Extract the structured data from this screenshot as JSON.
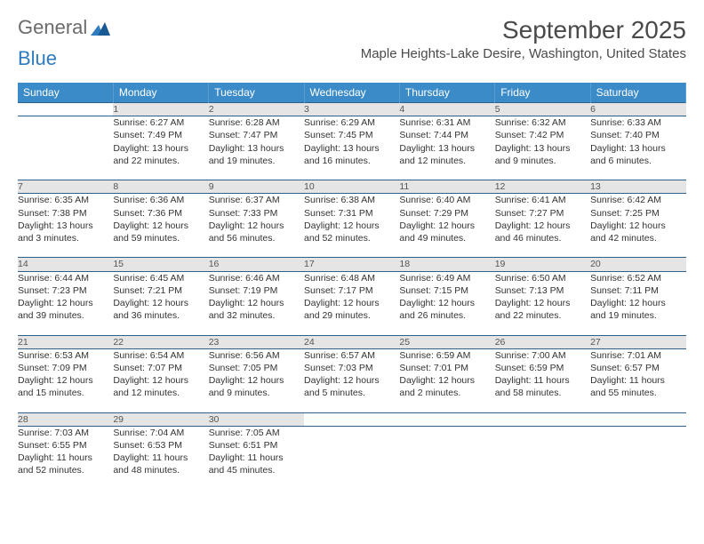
{
  "logo": {
    "text1": "General",
    "text2": "Blue"
  },
  "title": "September 2025",
  "location": "Maple Heights-Lake Desire, Washington, United States",
  "colors": {
    "header_bg": "#3b8bc8",
    "header_text": "#ffffff",
    "daynum_bg": "#e5e5e5",
    "daynum_text": "#555555",
    "body_text": "#333333",
    "rule": "#2f5f8a",
    "logo_gray": "#6b6b6b",
    "logo_blue": "#2f7bbf",
    "page_bg": "#ffffff"
  },
  "weekdays": [
    "Sunday",
    "Monday",
    "Tuesday",
    "Wednesday",
    "Thursday",
    "Friday",
    "Saturday"
  ],
  "weeks": [
    [
      null,
      {
        "n": "1",
        "sunrise": "Sunrise: 6:27 AM",
        "sunset": "Sunset: 7:49 PM",
        "day1": "Daylight: 13 hours",
        "day2": "and 22 minutes."
      },
      {
        "n": "2",
        "sunrise": "Sunrise: 6:28 AM",
        "sunset": "Sunset: 7:47 PM",
        "day1": "Daylight: 13 hours",
        "day2": "and 19 minutes."
      },
      {
        "n": "3",
        "sunrise": "Sunrise: 6:29 AM",
        "sunset": "Sunset: 7:45 PM",
        "day1": "Daylight: 13 hours",
        "day2": "and 16 minutes."
      },
      {
        "n": "4",
        "sunrise": "Sunrise: 6:31 AM",
        "sunset": "Sunset: 7:44 PM",
        "day1": "Daylight: 13 hours",
        "day2": "and 12 minutes."
      },
      {
        "n": "5",
        "sunrise": "Sunrise: 6:32 AM",
        "sunset": "Sunset: 7:42 PM",
        "day1": "Daylight: 13 hours",
        "day2": "and 9 minutes."
      },
      {
        "n": "6",
        "sunrise": "Sunrise: 6:33 AM",
        "sunset": "Sunset: 7:40 PM",
        "day1": "Daylight: 13 hours",
        "day2": "and 6 minutes."
      }
    ],
    [
      {
        "n": "7",
        "sunrise": "Sunrise: 6:35 AM",
        "sunset": "Sunset: 7:38 PM",
        "day1": "Daylight: 13 hours",
        "day2": "and 3 minutes."
      },
      {
        "n": "8",
        "sunrise": "Sunrise: 6:36 AM",
        "sunset": "Sunset: 7:36 PM",
        "day1": "Daylight: 12 hours",
        "day2": "and 59 minutes."
      },
      {
        "n": "9",
        "sunrise": "Sunrise: 6:37 AM",
        "sunset": "Sunset: 7:33 PM",
        "day1": "Daylight: 12 hours",
        "day2": "and 56 minutes."
      },
      {
        "n": "10",
        "sunrise": "Sunrise: 6:38 AM",
        "sunset": "Sunset: 7:31 PM",
        "day1": "Daylight: 12 hours",
        "day2": "and 52 minutes."
      },
      {
        "n": "11",
        "sunrise": "Sunrise: 6:40 AM",
        "sunset": "Sunset: 7:29 PM",
        "day1": "Daylight: 12 hours",
        "day2": "and 49 minutes."
      },
      {
        "n": "12",
        "sunrise": "Sunrise: 6:41 AM",
        "sunset": "Sunset: 7:27 PM",
        "day1": "Daylight: 12 hours",
        "day2": "and 46 minutes."
      },
      {
        "n": "13",
        "sunrise": "Sunrise: 6:42 AM",
        "sunset": "Sunset: 7:25 PM",
        "day1": "Daylight: 12 hours",
        "day2": "and 42 minutes."
      }
    ],
    [
      {
        "n": "14",
        "sunrise": "Sunrise: 6:44 AM",
        "sunset": "Sunset: 7:23 PM",
        "day1": "Daylight: 12 hours",
        "day2": "and 39 minutes."
      },
      {
        "n": "15",
        "sunrise": "Sunrise: 6:45 AM",
        "sunset": "Sunset: 7:21 PM",
        "day1": "Daylight: 12 hours",
        "day2": "and 36 minutes."
      },
      {
        "n": "16",
        "sunrise": "Sunrise: 6:46 AM",
        "sunset": "Sunset: 7:19 PM",
        "day1": "Daylight: 12 hours",
        "day2": "and 32 minutes."
      },
      {
        "n": "17",
        "sunrise": "Sunrise: 6:48 AM",
        "sunset": "Sunset: 7:17 PM",
        "day1": "Daylight: 12 hours",
        "day2": "and 29 minutes."
      },
      {
        "n": "18",
        "sunrise": "Sunrise: 6:49 AM",
        "sunset": "Sunset: 7:15 PM",
        "day1": "Daylight: 12 hours",
        "day2": "and 26 minutes."
      },
      {
        "n": "19",
        "sunrise": "Sunrise: 6:50 AM",
        "sunset": "Sunset: 7:13 PM",
        "day1": "Daylight: 12 hours",
        "day2": "and 22 minutes."
      },
      {
        "n": "20",
        "sunrise": "Sunrise: 6:52 AM",
        "sunset": "Sunset: 7:11 PM",
        "day1": "Daylight: 12 hours",
        "day2": "and 19 minutes."
      }
    ],
    [
      {
        "n": "21",
        "sunrise": "Sunrise: 6:53 AM",
        "sunset": "Sunset: 7:09 PM",
        "day1": "Daylight: 12 hours",
        "day2": "and 15 minutes."
      },
      {
        "n": "22",
        "sunrise": "Sunrise: 6:54 AM",
        "sunset": "Sunset: 7:07 PM",
        "day1": "Daylight: 12 hours",
        "day2": "and 12 minutes."
      },
      {
        "n": "23",
        "sunrise": "Sunrise: 6:56 AM",
        "sunset": "Sunset: 7:05 PM",
        "day1": "Daylight: 12 hours",
        "day2": "and 9 minutes."
      },
      {
        "n": "24",
        "sunrise": "Sunrise: 6:57 AM",
        "sunset": "Sunset: 7:03 PM",
        "day1": "Daylight: 12 hours",
        "day2": "and 5 minutes."
      },
      {
        "n": "25",
        "sunrise": "Sunrise: 6:59 AM",
        "sunset": "Sunset: 7:01 PM",
        "day1": "Daylight: 12 hours",
        "day2": "and 2 minutes."
      },
      {
        "n": "26",
        "sunrise": "Sunrise: 7:00 AM",
        "sunset": "Sunset: 6:59 PM",
        "day1": "Daylight: 11 hours",
        "day2": "and 58 minutes."
      },
      {
        "n": "27",
        "sunrise": "Sunrise: 7:01 AM",
        "sunset": "Sunset: 6:57 PM",
        "day1": "Daylight: 11 hours",
        "day2": "and 55 minutes."
      }
    ],
    [
      {
        "n": "28",
        "sunrise": "Sunrise: 7:03 AM",
        "sunset": "Sunset: 6:55 PM",
        "day1": "Daylight: 11 hours",
        "day2": "and 52 minutes."
      },
      {
        "n": "29",
        "sunrise": "Sunrise: 7:04 AM",
        "sunset": "Sunset: 6:53 PM",
        "day1": "Daylight: 11 hours",
        "day2": "and 48 minutes."
      },
      {
        "n": "30",
        "sunrise": "Sunrise: 7:05 AM",
        "sunset": "Sunset: 6:51 PM",
        "day1": "Daylight: 11 hours",
        "day2": "and 45 minutes."
      },
      null,
      null,
      null,
      null
    ]
  ]
}
